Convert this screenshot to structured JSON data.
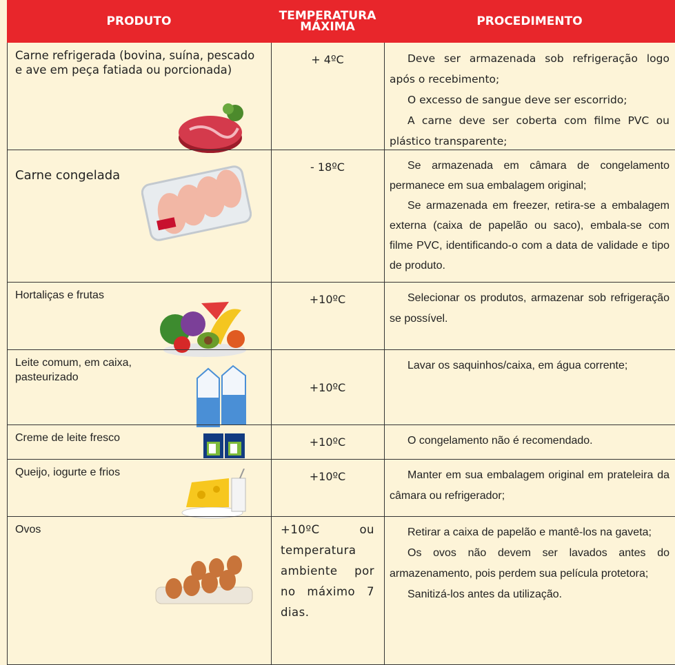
{
  "table": {
    "headers": [
      "PRODUTO",
      "TEMPERATURA MÁXIMA",
      "PROCEDIMENTO"
    ],
    "rows": [
      {
        "product": "Carne refrigerada (bovina, suína, pescado e ave em peça fatiada ou porcionada)",
        "temperature": "+ 4ºC",
        "procedure": [
          "Deve ser armazenada sob refrigeração logo após o recebimento;",
          "O excesso de sangue deve ser escorrido;",
          "A carne deve ser coberta com filme PVC ou plástico transparente;"
        ]
      },
      {
        "product": "Carne congelada",
        "temperature": "- 18ºC",
        "procedure": [
          "Se armazenada em câmara de congelamento permanece em sua embalagem original;",
          "Se armazenada em freezer, retira-se a embalagem externa (caixa de papelão ou saco), embala-se com filme PVC, identificando-o com a data de validade e tipo de produto."
        ]
      },
      {
        "product": "Hortaliças e frutas",
        "temperature": "+10ºC",
        "procedure": [
          "Selecionar os produtos, armazenar sob refrigeração se possível."
        ]
      },
      {
        "product": "Leite comum, em caixa, pasteurizado",
        "temperature": "+10ºC",
        "procedure": [
          "Lavar os saquinhos/caixa, em água corrente;"
        ]
      },
      {
        "product": "Creme de leite fresco",
        "temperature": "+10ºC",
        "procedure": [
          "O congelamento não é recomendado."
        ]
      },
      {
        "product": "Queijo, iogurte e frios",
        "temperature": "+10ºC",
        "procedure": [
          "Manter em sua embalagem original em prateleira da câmara ou refrigerador;"
        ]
      },
      {
        "product": "Ovos",
        "temperature": "+10ºC ou temperatura ambiente por no máximo 7 dias.",
        "procedure": [
          "Retirar a caixa de papelão e mantê-los na gaveta;",
          "Os ovos não devem ser lavados antes do armazenamento, pois perdem sua película protetora;",
          "Sanitizá-los antes da utilização."
        ]
      }
    ]
  }
}
